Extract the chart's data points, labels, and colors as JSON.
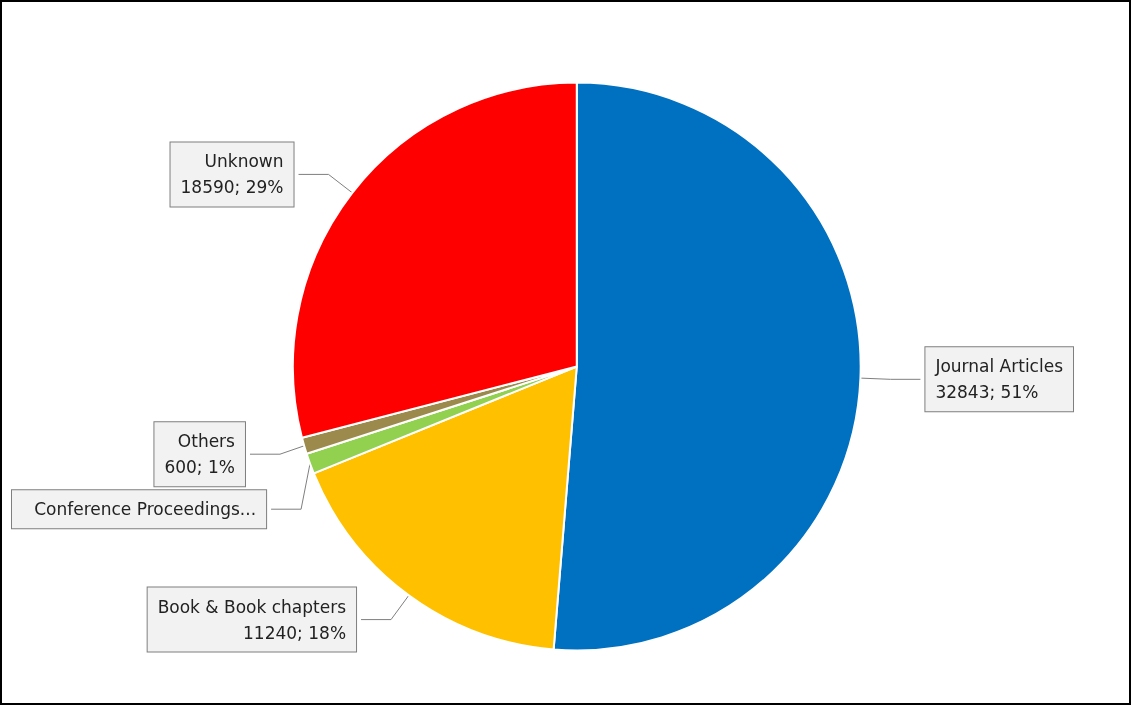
{
  "chart_data": {
    "type": "pie",
    "categories": [
      "Journal Articles",
      "Book & Book chapters",
      "Conference Proceedings...",
      "Others",
      "Unknown"
    ],
    "values": [
      32843,
      11240,
      750,
      600,
      18590
    ],
    "colors": [
      "#0070c0",
      "#ffc000",
      "#92d050",
      "#9c8a4c",
      "#ff0000"
    ],
    "value_labels": [
      "32843; 51%",
      "11240; 18%",
      null,
      "600; 1%",
      "18590; 29%"
    ],
    "legend": false
  }
}
